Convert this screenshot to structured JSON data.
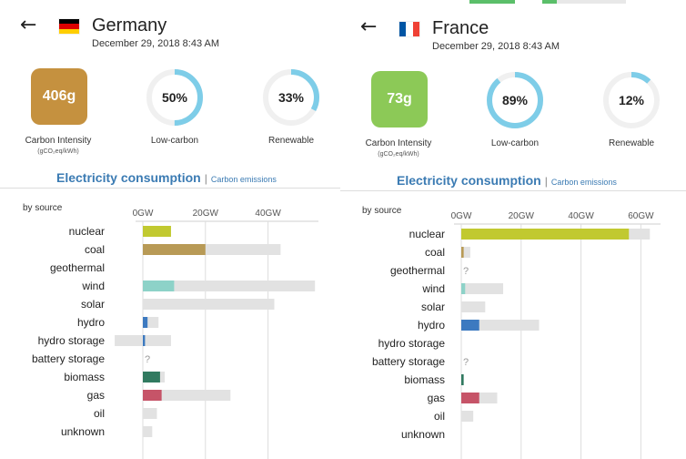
{
  "colors": {
    "nuclear": "#c1c930",
    "coal": "#b89a56",
    "geothermal": "#b27a34",
    "wind": "#8dd2c8",
    "solar": "#f3d06a",
    "hydro": "#3d7ac0",
    "hydro storage": "#3d7ac0",
    "battery storage": "#3d7ac0",
    "biomass": "#317a60",
    "gas": "#c65468",
    "oil": "#867d66",
    "unknown": "#aaaaaa",
    "capacity": "#e2e2e2",
    "gauge_fill": "#7ecde8",
    "gauge_track": "#f0f0f0"
  },
  "panels": [
    {
      "id": "germany",
      "country": "Germany",
      "flag": [
        "#000000",
        "#dd0000",
        "#ffce00"
      ],
      "flag_icon": "germany-flag-icon",
      "date": "December 29, 2018 8:43 AM",
      "carbon_intensity": {
        "value": "406g",
        "label": "Carbon Intensity",
        "unit": "(gCO₂eq/kWh)",
        "color": "#c5913f"
      },
      "low_carbon": {
        "value": "50%",
        "fraction": 0.5,
        "label": "Low-carbon"
      },
      "renewable": {
        "value": "33%",
        "fraction": 0.33,
        "label": "Renewable"
      },
      "tabs": {
        "active": "Electricity consumption",
        "inactive": "Carbon emissions"
      },
      "by_source": "by source",
      "chart_data": {
        "type": "bar",
        "x_unit": "GW",
        "xlim": [
          0,
          55
        ],
        "ticks": [
          {
            "v": 0,
            "label": "0GW"
          },
          {
            "v": 20,
            "label": "20GW"
          },
          {
            "v": 40,
            "label": "40GW"
          }
        ],
        "rows": [
          {
            "source": "nuclear",
            "production": 9,
            "capacity": null,
            "unknown": false
          },
          {
            "source": "coal",
            "production": 20,
            "capacity": 44,
            "unknown": false
          },
          {
            "source": "geothermal",
            "production": 0,
            "capacity": null,
            "unknown": false
          },
          {
            "source": "wind",
            "production": 10,
            "capacity": 55,
            "unknown": false
          },
          {
            "source": "solar",
            "production": 0,
            "capacity": 42,
            "unknown": false
          },
          {
            "source": "hydro",
            "production": 1.5,
            "capacity": 5,
            "unknown": false
          },
          {
            "source": "hydro storage",
            "production": 0.7,
            "capacity": 9,
            "capacity_neg": -9,
            "unknown": false
          },
          {
            "source": "battery storage",
            "production": 0,
            "capacity": null,
            "unknown": true
          },
          {
            "source": "biomass",
            "production": 5.5,
            "capacity": 7,
            "unknown": false
          },
          {
            "source": "gas",
            "production": 6,
            "capacity": 28,
            "unknown": false
          },
          {
            "source": "oil",
            "production": 0,
            "capacity": 4.5,
            "unknown": false
          },
          {
            "source": "unknown",
            "production": 0,
            "capacity": 3,
            "unknown": false
          }
        ]
      }
    },
    {
      "id": "france",
      "country": "France",
      "flag": [
        "#0055a4",
        "#ffffff",
        "#ef4135"
      ],
      "flag_icon": "france-flag-icon",
      "date": "December 29, 2018 8:43 AM",
      "carbon_intensity": {
        "value": "73g",
        "label": "Carbon Intensity",
        "unit": "(gCO₂eq/kWh)",
        "color": "#8cc957"
      },
      "low_carbon": {
        "value": "89%",
        "fraction": 0.89,
        "label": "Low-carbon"
      },
      "renewable": {
        "value": "12%",
        "fraction": 0.12,
        "label": "Renewable"
      },
      "tabs": {
        "active": "Electricity consumption",
        "inactive": "Carbon emissions"
      },
      "by_source": "by source",
      "chart_data": {
        "type": "bar",
        "x_unit": "GW",
        "xlim": [
          0,
          65
        ],
        "ticks": [
          {
            "v": 0,
            "label": "0GW"
          },
          {
            "v": 20,
            "label": "20GW"
          },
          {
            "v": 40,
            "label": "40GW"
          },
          {
            "v": 60,
            "label": "60GW"
          }
        ],
        "rows": [
          {
            "source": "nuclear",
            "production": 56,
            "capacity": 63,
            "unknown": false
          },
          {
            "source": "coal",
            "production": 0.8,
            "capacity": 3,
            "unknown": false
          },
          {
            "source": "geothermal",
            "production": 0,
            "capacity": null,
            "unknown": true
          },
          {
            "source": "wind",
            "production": 1.3,
            "capacity": 14,
            "unknown": false
          },
          {
            "source": "solar",
            "production": 0,
            "capacity": 8,
            "unknown": false
          },
          {
            "source": "hydro",
            "production": 6,
            "capacity": 26,
            "unknown": false
          },
          {
            "source": "hydro storage",
            "production": 0,
            "capacity": null,
            "unknown": false
          },
          {
            "source": "battery storage",
            "production": 0,
            "capacity": null,
            "unknown": true
          },
          {
            "source": "biomass",
            "production": 0.8,
            "capacity": null,
            "unknown": false
          },
          {
            "source": "gas",
            "production": 6,
            "capacity": 12,
            "unknown": false
          },
          {
            "source": "oil",
            "production": 0,
            "capacity": 4,
            "unknown": false
          },
          {
            "source": "unknown",
            "production": 0,
            "capacity": null,
            "unknown": false
          }
        ]
      }
    }
  ]
}
